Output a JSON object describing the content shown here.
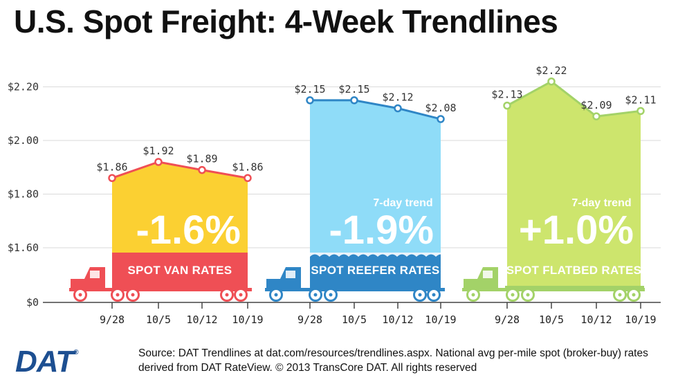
{
  "title": "U.S. Spot Freight: 4-Week Trendlines",
  "chart_data": {
    "type": "area",
    "title": "U.S. Spot Freight: 4-Week Trendlines",
    "y_tick_labels": [
      "$2.20",
      "$2.00",
      "$1.80",
      "$1.60",
      "$0"
    ],
    "y_tick_values": [
      2.2,
      2.0,
      1.8,
      1.6,
      0
    ],
    "ylim_upper_segment": [
      1.55,
      2.3
    ],
    "axis_break": true,
    "categories": [
      "9/28",
      "10/5",
      "10/12",
      "10/19"
    ],
    "series": [
      {
        "name": "Spot Van Rates",
        "band_label": "SPOT VAN RATES",
        "values": [
          1.86,
          1.92,
          1.89,
          1.86
        ],
        "value_labels": [
          "$1.86",
          "$1.92",
          "$1.89",
          "$1.86"
        ],
        "trend_label": "",
        "trend_value": "-1.6%",
        "area_color": "#fbd032",
        "line_color": "#ef4f55",
        "band_color": "#ef4f55",
        "truck_color": "#ef4f55"
      },
      {
        "name": "Spot Reefer Rates",
        "band_label": "SPOT REEFER RATES",
        "values": [
          2.15,
          2.15,
          2.12,
          2.08
        ],
        "value_labels": [
          "$2.15",
          "$2.15",
          "$2.12",
          "$2.08"
        ],
        "trend_label": "7-day trend",
        "trend_value": "-1.9%",
        "area_color": "#8fdcf8",
        "line_color": "#2f86c6",
        "band_color": "#2f86c6",
        "truck_color": "#2f86c6"
      },
      {
        "name": "Spot Flatbed Rates",
        "band_label": "SPOT FLATBED RATES",
        "values": [
          2.13,
          2.22,
          2.09,
          2.11
        ],
        "value_labels": [
          "$2.13",
          "$2.22",
          "$2.09",
          "$2.11"
        ],
        "trend_label": "7-day trend",
        "trend_value": "+1.0%",
        "area_color": "#cde56d",
        "line_color": "#a3d268",
        "band_color": "#cde56d",
        "truck_color": "#a3d268"
      }
    ]
  },
  "footer": {
    "logo_text": "DAT",
    "logo_mark": "®",
    "source_text": "Source: DAT Trendlines at dat.com/resources/trendlines.aspx. National avg per-mile spot (broker-buy) rates derived from DAT RateView. © 2013 TransCore DAT. All rights reserved"
  }
}
